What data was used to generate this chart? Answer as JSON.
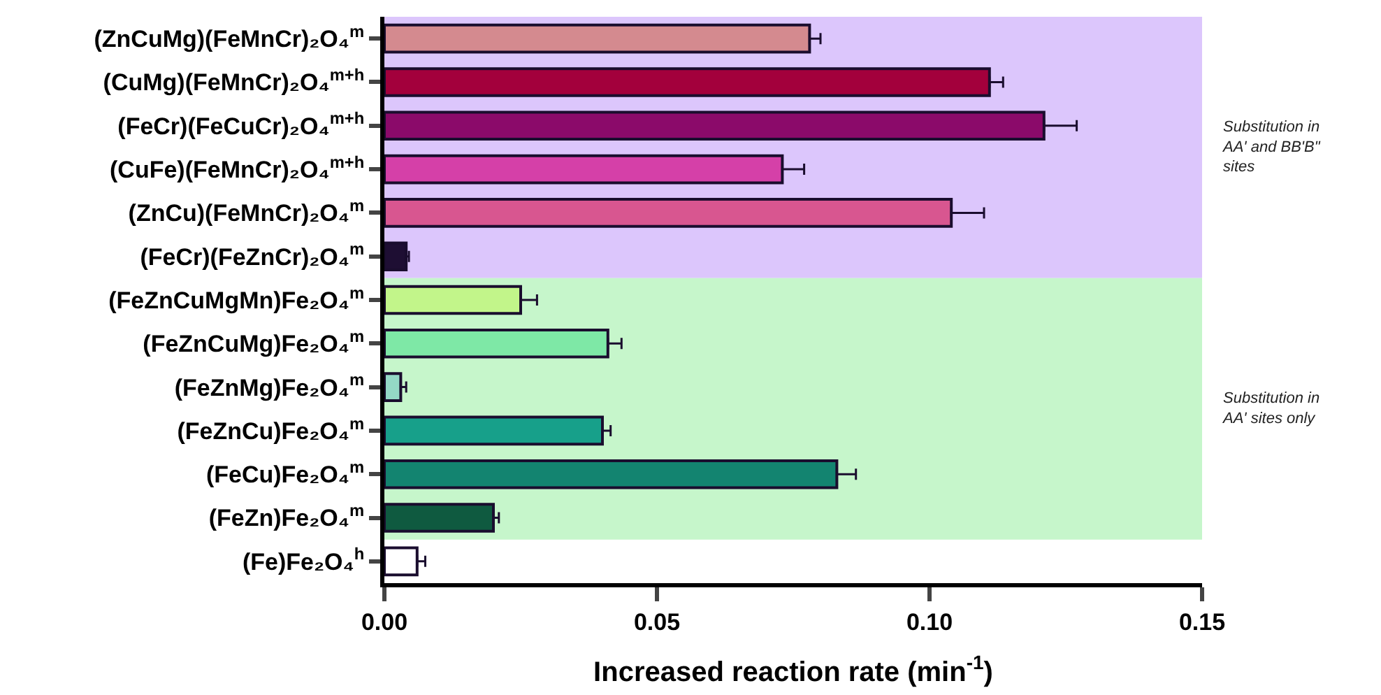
{
  "chart_data": {
    "type": "bar",
    "orientation": "horizontal",
    "xlabel": "Increased reaction rate (min$^{-1}$)",
    "categories": [
      "(ZnCuMg)(FeMnCr)₂O₄$^{m}$",
      "(CuMg)(FeMnCr)₂O₄$^{m+h}$",
      "(FeCr)(FeCuCr)₂O₄$^{m+h}$",
      "(CuFe)(FeMnCr)₂O₄$^{m+h}$",
      "(ZnCu)(FeMnCr)₂O₄$^{m}$",
      "(FeCr)(FeZnCr)₂O₄$^{m}$",
      "(FeZnCuMgMn)Fe₂O₄$^{m}$",
      "(FeZnCuMg)Fe₂O₄$^{m}$",
      "(FeZnMg)Fe₂O₄$^{m}$",
      "(FeZnCu)Fe₂O₄$^{m}$",
      "(FeCu)Fe₂O₄$^{m}$",
      "(FeZn)Fe₂O₄$^{m}$",
      "(Fe)Fe₂O₄$^{h}$"
    ],
    "values": [
      0.078,
      0.111,
      0.121,
      0.073,
      0.104,
      0.004,
      0.025,
      0.041,
      0.003,
      0.04,
      0.083,
      0.02,
      0.006
    ],
    "errors": [
      0.002,
      0.0025,
      0.006,
      0.004,
      0.006,
      0.0005,
      0.003,
      0.0025,
      0.001,
      0.0015,
      0.0035,
      0.001,
      0.0015
    ],
    "colors": [
      "#d48a8f",
      "#a3003c",
      "#8b0a6a",
      "#d540a8",
      "#d85690",
      "#1e0e33",
      "#c2f58a",
      "#7ee8a6",
      "#94d8c6",
      "#17a08a",
      "#138470",
      "#0f5a40",
      "#ffffff"
    ],
    "xlim": [
      0,
      0.15
    ],
    "xticks": [
      {
        "value": 0,
        "label": "0.00"
      },
      0.05,
      {
        "value": 0.1,
        "label": "0.10"
      },
      0.15
    ],
    "bands": [
      {
        "axis": "y",
        "from": "(ZnCuMg)(FeMnCr)₂O₄$^{m}$",
        "to": "(FeCr)(FeZnCr)₂O₄$^{m}$",
        "label": "Substitution in AA' and BB'B\" sites",
        "color": "#dcc6fc"
      },
      {
        "axis": "y",
        "from": "(FeZnCuMgMn)Fe₂O₄$^{m}$",
        "to": "(FeZn)Fe₂O₄$^{m}$",
        "label": "Substitution in AA' sites only",
        "color": "#c6f6cb"
      }
    ],
    "grid": false
  }
}
